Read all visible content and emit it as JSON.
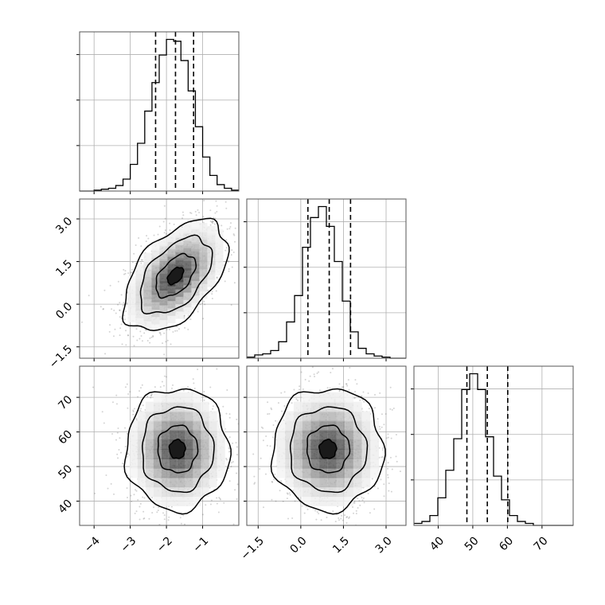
{
  "chart_data": {
    "type": "corner",
    "grid": true,
    "parameters": [
      {
        "range": [
          -4.4,
          -0.0
        ],
        "ticks": [
          -4,
          -3,
          -2,
          -1
        ],
        "tick_labels": [
          "−4",
          "−3",
          "−2",
          "−1"
        ]
      },
      {
        "range": [
          -1.9,
          3.7
        ],
        "ticks": [
          -1.5,
          0.0,
          1.5,
          3.0
        ],
        "tick_labels": [
          "−1.5",
          "0.0",
          "1.5",
          "3.0"
        ]
      },
      {
        "range": [
          33,
          79
        ],
        "ticks": [
          40,
          50,
          60,
          70
        ],
        "tick_labels": [
          "40",
          "50",
          "60",
          "70"
        ]
      }
    ],
    "marginals": [
      {
        "bins_start": -4.4,
        "bin_width": 0.2,
        "counts": [
          0,
          0,
          1,
          2,
          3,
          6,
          13,
          29,
          52,
          87,
          118,
          148,
          165,
          163,
          142,
          109,
          70,
          37,
          17,
          7,
          3,
          1
        ],
        "quantiles": [
          -2.3,
          -1.75,
          -1.25
        ]
      },
      {
        "bins_start": -1.9,
        "bin_width": 0.28,
        "counts": [
          1,
          3,
          4,
          7,
          15,
          33,
          57,
          101,
          128,
          138,
          120,
          88,
          52,
          24,
          9,
          4,
          2,
          1,
          0,
          0
        ],
        "quantiles": [
          0.25,
          1.0,
          1.75
        ]
      },
      {
        "bins_start": 33,
        "bin_width": 2.3,
        "counts": [
          1,
          2,
          5,
          14,
          28,
          44,
          69,
          77,
          69,
          45,
          25,
          13,
          5,
          2,
          1,
          0,
          0,
          0,
          0,
          0
        ],
        "quantiles": [
          48.3,
          54.2,
          60.1
        ]
      }
    ],
    "joint": [
      {
        "x_param": 0,
        "y_param": 1,
        "center": [
          -1.75,
          1.0
        ],
        "sigma": [
          0.55,
          0.75
        ],
        "rho": 0.5,
        "contour_levels": [
          0.4,
          1.0,
          1.8,
          2.6
        ]
      },
      {
        "x_param": 0,
        "y_param": 2,
        "center": [
          -1.7,
          55.0
        ],
        "sigma": [
          0.55,
          6.8
        ],
        "rho": 0.0,
        "contour_levels": [
          0.4,
          1.0,
          1.8,
          2.6
        ]
      },
      {
        "x_param": 1,
        "y_param": 2,
        "center": [
          0.95,
          55.0
        ],
        "sigma": [
          0.75,
          6.8
        ],
        "rho": 0.0,
        "contour_levels": [
          0.4,
          1.0,
          1.8,
          2.6
        ]
      }
    ],
    "colors": {
      "line": "#000000",
      "grid": "#b0b0b0",
      "frame": "#555555",
      "scatter": "#555555"
    }
  }
}
